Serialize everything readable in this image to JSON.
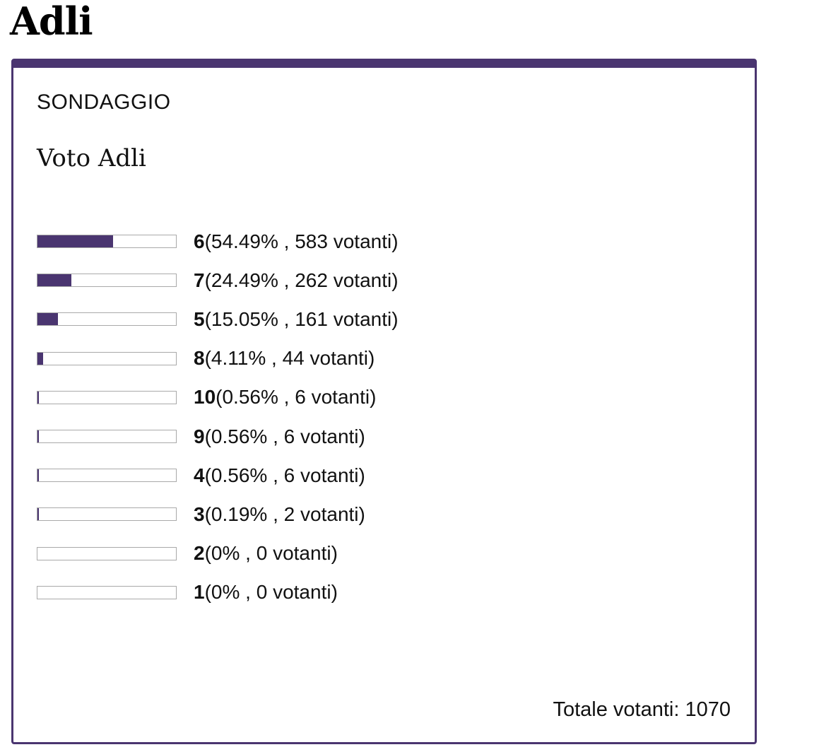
{
  "page": {
    "title": "Adli"
  },
  "poll": {
    "kicker": "SONDAGGIO",
    "question": "Voto Adli",
    "accent_color": "#4a3570",
    "voters_word": "votanti",
    "options": [
      {
        "label": "6",
        "percent": 54.49,
        "percent_text": "54.49%",
        "votes": 583
      },
      {
        "label": "7",
        "percent": 24.49,
        "percent_text": "24.49%",
        "votes": 262
      },
      {
        "label": "5",
        "percent": 15.05,
        "percent_text": "15.05%",
        "votes": 161
      },
      {
        "label": "8",
        "percent": 4.11,
        "percent_text": "4.11%",
        "votes": 44
      },
      {
        "label": "10",
        "percent": 0.56,
        "percent_text": "0.56%",
        "votes": 6
      },
      {
        "label": "9",
        "percent": 0.56,
        "percent_text": "0.56%",
        "votes": 6
      },
      {
        "label": "4",
        "percent": 0.56,
        "percent_text": "0.56%",
        "votes": 6
      },
      {
        "label": "3",
        "percent": 0.19,
        "percent_text": "0.19%",
        "votes": 2
      },
      {
        "label": "2",
        "percent": 0,
        "percent_text": "0%",
        "votes": 0
      },
      {
        "label": "1",
        "percent": 0,
        "percent_text": "0%",
        "votes": 0
      }
    ],
    "total_label": "Totale votanti:",
    "total_value": "1070"
  }
}
